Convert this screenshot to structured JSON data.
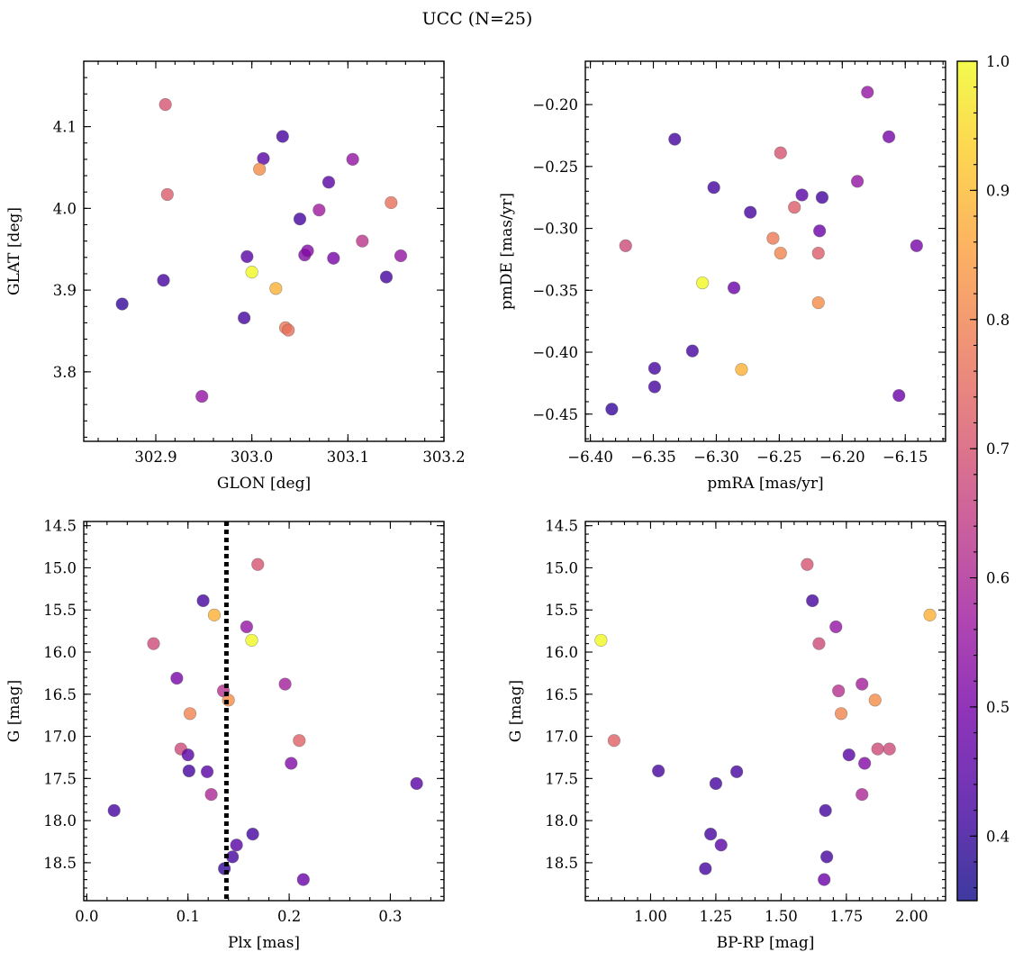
{
  "figure": {
    "suptitle": "UCC (N=25)"
  },
  "colorbar": {
    "cmap": "plasma",
    "range": [
      0.35,
      1.0
    ],
    "ticks": [
      "0.4",
      "0.5",
      "0.6",
      "0.7",
      "0.8",
      "0.9",
      "1.0"
    ],
    "tick_values": [
      0.4,
      0.5,
      0.6,
      0.7,
      0.8,
      0.9,
      1.0
    ],
    "stops": [
      "#0d0887",
      "#46039f",
      "#7201a8",
      "#9c179e",
      "#bd3786",
      "#d8576b",
      "#ed7953",
      "#fb9f3a",
      "#fdca26",
      "#f0f921"
    ],
    "alpha": 0.8
  },
  "chart_data": [
    {
      "id": "ax1",
      "type": "scatter",
      "xlabel": "GLON [deg]",
      "ylabel": "GLAT [deg]",
      "xlim": [
        302.825,
        303.2
      ],
      "ylim": [
        3.715,
        4.18
      ],
      "xticks": [
        "302.9",
        "303.0",
        "303.1",
        "303.2"
      ],
      "xtick_values": [
        302.9,
        303.0,
        303.1,
        303.2
      ],
      "yticks": [
        "3.8",
        "3.9",
        "4.0",
        "4.1"
      ],
      "ytick_values": [
        3.8,
        3.9,
        4.0,
        4.1
      ],
      "xminor_step": 0.02,
      "yminor_step": 0.02,
      "x": [
        302.865,
        302.908,
        302.912,
        302.948,
        302.992,
        302.995,
        303.012,
        303.032,
        303.0,
        303.008,
        303.025,
        303.035,
        303.038,
        303.05,
        303.055,
        303.058,
        303.07,
        303.08,
        303.085,
        303.105,
        303.115,
        303.14,
        303.145,
        303.155,
        302.91
      ],
      "y": [
        3.883,
        3.912,
        4.017,
        3.77,
        3.866,
        3.941,
        4.061,
        4.088,
        3.922,
        4.048,
        3.902,
        3.854,
        3.851,
        3.987,
        3.943,
        3.948,
        3.998,
        4.032,
        3.939,
        4.06,
        3.96,
        3.916,
        4.007,
        3.942,
        4.127
      ],
      "c": [
        0.4,
        0.42,
        0.72,
        0.55,
        0.42,
        0.45,
        0.45,
        0.42,
        1.0,
        0.82,
        0.88,
        0.78,
        0.76,
        0.42,
        0.52,
        0.52,
        0.57,
        0.45,
        0.5,
        0.55,
        0.63,
        0.42,
        0.76,
        0.55,
        0.7
      ]
    },
    {
      "id": "ax2",
      "type": "scatter",
      "xlabel": "pmRA [mas/yr]",
      "ylabel": "pmDE [mas/yr]",
      "xlim": [
        -6.404,
        -6.118
      ],
      "ylim": [
        -0.472,
        -0.165
      ],
      "xticks": [
        "−6.40",
        "−6.35",
        "−6.30",
        "−6.25",
        "−6.20",
        "−6.15"
      ],
      "xtick_values": [
        -6.4,
        -6.35,
        -6.3,
        -6.25,
        -6.2,
        -6.15
      ],
      "yticks": [
        "−0.45",
        "−0.40",
        "−0.35",
        "−0.30",
        "−0.25",
        "−0.20"
      ],
      "ytick_values": [
        -0.45,
        -0.4,
        -0.35,
        -0.3,
        -0.25,
        -0.2
      ],
      "xminor_step": 0.01,
      "yminor_step": 0.01,
      "x": [
        -6.383,
        -6.372,
        -6.349,
        -6.349,
        -6.333,
        -6.319,
        -6.311,
        -6.302,
        -6.286,
        -6.28,
        -6.273,
        -6.255,
        -6.249,
        -6.249,
        -6.238,
        -6.232,
        -6.219,
        -6.219,
        -6.218,
        -6.216,
        -6.188,
        -6.18,
        -6.163,
        -6.155,
        -6.141
      ],
      "y": [
        -0.446,
        -0.314,
        -0.428,
        -0.413,
        -0.228,
        -0.399,
        -0.344,
        -0.267,
        -0.348,
        -0.414,
        -0.287,
        -0.308,
        -0.239,
        -0.32,
        -0.283,
        -0.273,
        -0.32,
        -0.36,
        -0.302,
        -0.275,
        -0.262,
        -0.19,
        -0.226,
        -0.435,
        -0.314
      ],
      "c": [
        0.4,
        0.68,
        0.42,
        0.42,
        0.42,
        0.42,
        1.0,
        0.42,
        0.48,
        0.88,
        0.42,
        0.78,
        0.7,
        0.8,
        0.72,
        0.45,
        0.72,
        0.82,
        0.48,
        0.42,
        0.55,
        0.55,
        0.5,
        0.48,
        0.5
      ]
    },
    {
      "id": "ax3",
      "type": "scatter",
      "xlabel": "Plx [mas]",
      "ylabel": "G [mag]",
      "xlim": [
        -0.003,
        0.353
      ],
      "ylim": [
        18.95,
        14.45
      ],
      "invert_y": true,
      "xticks": [
        "0.0",
        "0.1",
        "0.2",
        "0.3"
      ],
      "xtick_values": [
        0.0,
        0.1,
        0.2,
        0.3
      ],
      "yticks": [
        "14.5",
        "15.0",
        "15.5",
        "16.0",
        "16.5",
        "17.0",
        "17.5",
        "18.0",
        "18.5"
      ],
      "ytick_values": [
        14.5,
        15.0,
        15.5,
        16.0,
        16.5,
        17.0,
        17.5,
        18.0,
        18.5
      ],
      "xminor_step": 0.02,
      "yminor_step": 0.1,
      "vline": {
        "x": 0.138,
        "style": "dotted",
        "color": "#000000"
      },
      "x": [
        0.027,
        0.066,
        0.089,
        0.093,
        0.1,
        0.102,
        0.101,
        0.115,
        0.119,
        0.123,
        0.126,
        0.135,
        0.14,
        0.136,
        0.144,
        0.148,
        0.158,
        0.163,
        0.164,
        0.169,
        0.196,
        0.202,
        0.21,
        0.214,
        0.326
      ],
      "y": [
        17.88,
        15.9,
        16.31,
        17.15,
        17.22,
        16.73,
        17.41,
        15.39,
        17.42,
        17.69,
        15.56,
        16.46,
        16.57,
        18.57,
        18.43,
        18.29,
        15.7,
        15.86,
        18.16,
        14.96,
        16.38,
        17.32,
        17.05,
        18.7,
        17.56
      ],
      "c": [
        0.42,
        0.68,
        0.5,
        0.68,
        0.45,
        0.8,
        0.42,
        0.42,
        0.45,
        0.6,
        0.88,
        0.62,
        0.82,
        0.4,
        0.42,
        0.45,
        0.55,
        1.0,
        0.42,
        0.7,
        0.58,
        0.52,
        0.73,
        0.48,
        0.45
      ]
    },
    {
      "id": "ax4",
      "type": "scatter",
      "xlabel": "BP-RP [mag]",
      "ylabel": "G [mag]",
      "xlim": [
        0.75,
        2.13
      ],
      "ylim": [
        18.95,
        14.45
      ],
      "invert_y": true,
      "xticks": [
        "1.00",
        "1.25",
        "1.50",
        "1.75",
        "2.00"
      ],
      "xtick_values": [
        1.0,
        1.25,
        1.5,
        1.75,
        2.0
      ],
      "yticks": [
        "14.5",
        "15.0",
        "15.5",
        "16.0",
        "16.5",
        "17.0",
        "17.5",
        "18.0",
        "18.5"
      ],
      "ytick_values": [
        14.5,
        15.0,
        15.5,
        16.0,
        16.5,
        17.0,
        17.5,
        18.0,
        18.5
      ],
      "xminor_step": 0.05,
      "yminor_step": 0.1,
      "x": [
        0.81,
        0.86,
        1.03,
        1.21,
        1.23,
        1.25,
        1.27,
        1.33,
        1.6,
        1.62,
        1.645,
        1.665,
        1.67,
        1.675,
        1.71,
        1.72,
        1.73,
        1.76,
        1.81,
        1.81,
        1.82,
        1.86,
        1.87,
        1.915,
        2.07
      ],
      "y": [
        15.86,
        17.05,
        17.41,
        18.57,
        18.16,
        17.56,
        18.29,
        17.42,
        14.96,
        15.39,
        15.9,
        18.7,
        17.88,
        18.43,
        15.7,
        16.46,
        16.73,
        17.22,
        16.38,
        17.69,
        17.32,
        16.57,
        17.15,
        17.15,
        15.56
      ],
      "c": [
        1.0,
        0.73,
        0.42,
        0.42,
        0.42,
        0.42,
        0.45,
        0.42,
        0.7,
        0.42,
        0.68,
        0.48,
        0.42,
        0.42,
        0.55,
        0.62,
        0.8,
        0.45,
        0.58,
        0.6,
        0.52,
        0.82,
        0.68,
        0.68,
        0.88
      ]
    }
  ]
}
